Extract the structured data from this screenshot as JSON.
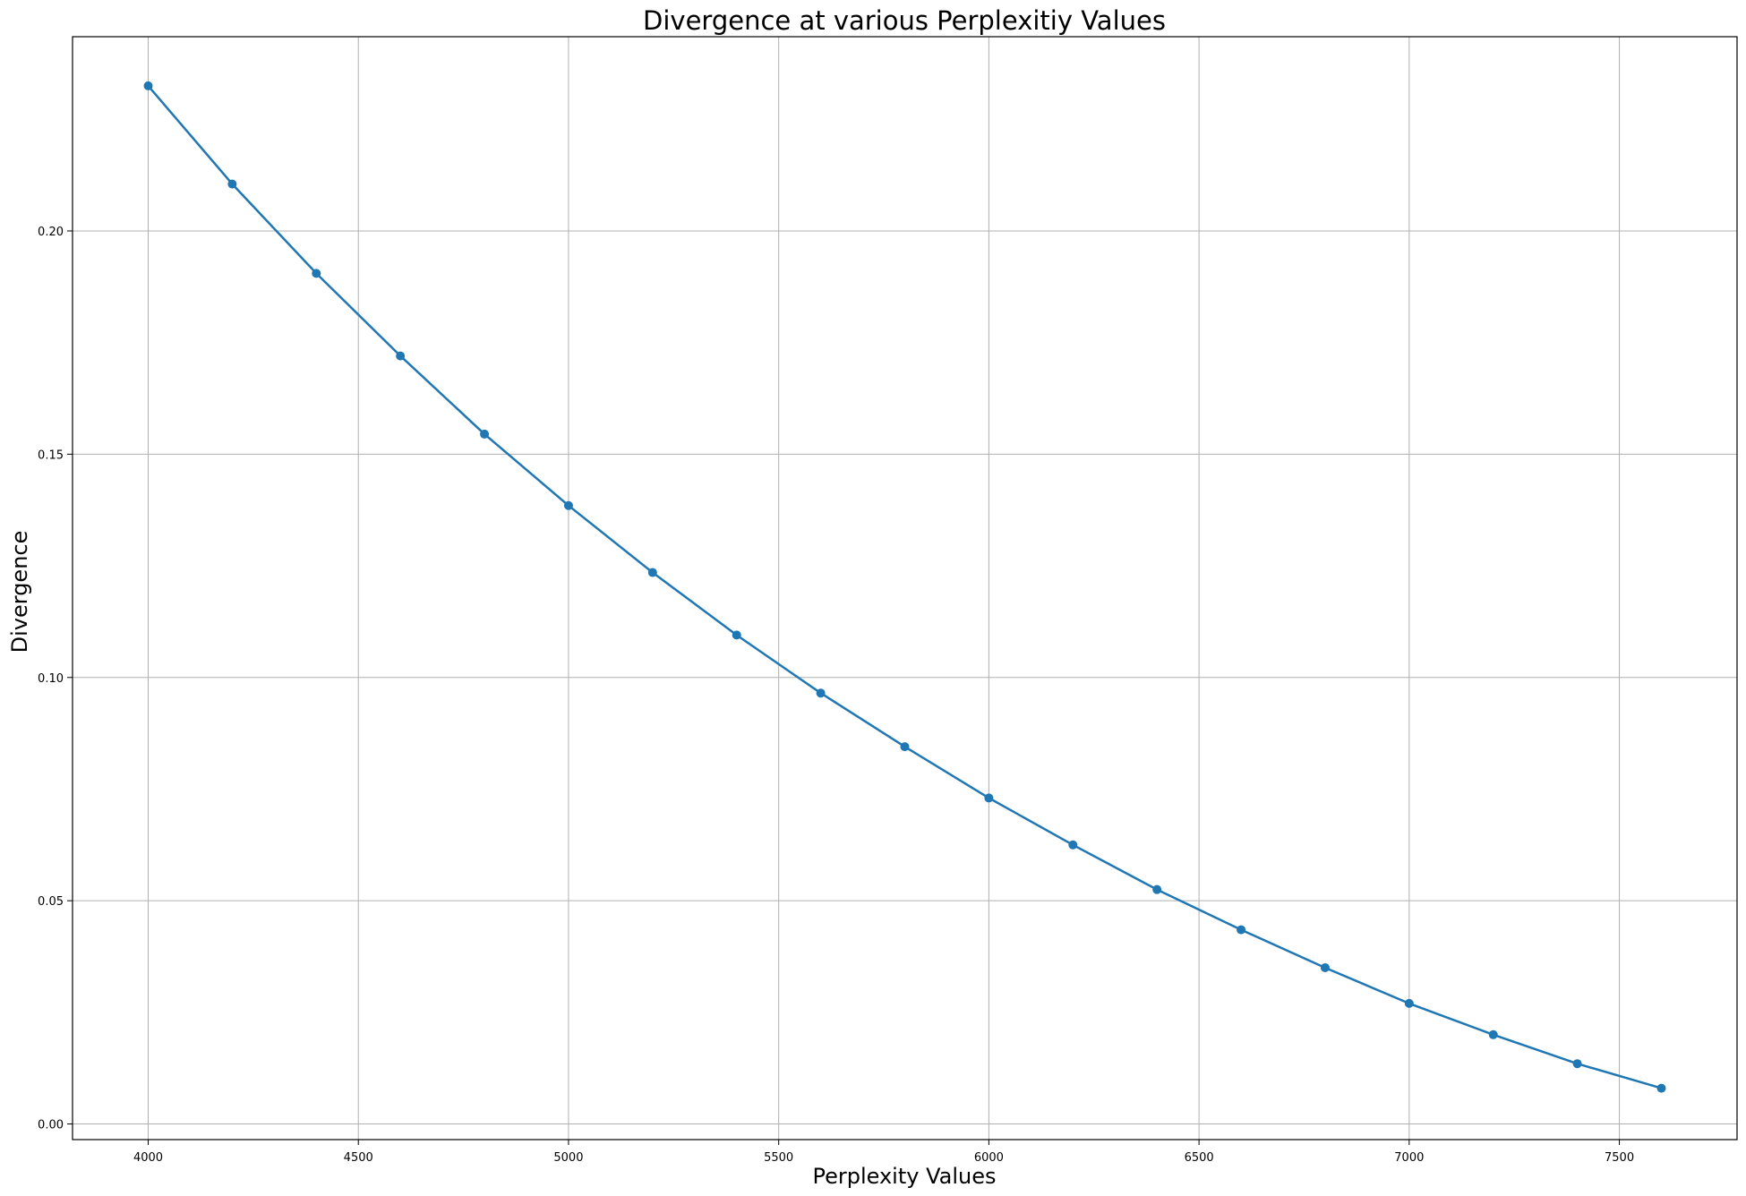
{
  "chart_data": {
    "type": "line",
    "title": "Divergence at various Perplexitiy Values",
    "xlabel": "Perplexity Values",
    "ylabel": "Divergence",
    "xlim": [
      3820,
      7780
    ],
    "ylim": [
      -0.0035,
      0.2435
    ],
    "xticks": [
      4000,
      4500,
      5000,
      5500,
      6000,
      6500,
      7000,
      7500
    ],
    "xtick_labels": [
      "4000",
      "4500",
      "5000",
      "5500",
      "6000",
      "6500",
      "7000",
      "7500"
    ],
    "yticks": [
      0.0,
      0.05,
      0.1,
      0.15,
      0.2
    ],
    "ytick_labels": [
      "0.00",
      "0.05",
      "0.10",
      "0.15",
      "0.20"
    ],
    "grid": true,
    "legend": "none",
    "colors": {
      "line": "#1f77b4",
      "grid": "#b0b0b0",
      "axes": "#000000",
      "background": "#ffffff"
    },
    "series": [
      {
        "marker": "circle",
        "x": [
          4000,
          4200,
          4400,
          4600,
          4800,
          5000,
          5200,
          5400,
          5600,
          5800,
          6000,
          6200,
          6400,
          6600,
          6800,
          7000,
          7200,
          7400,
          7600
        ],
        "y": [
          0.2325,
          0.2105,
          0.1905,
          0.172,
          0.1545,
          0.1385,
          0.1235,
          0.1095,
          0.0965,
          0.0845,
          0.073,
          0.0625,
          0.0525,
          0.0435,
          0.035,
          0.027,
          0.02,
          0.0135,
          0.008
        ]
      }
    ]
  }
}
